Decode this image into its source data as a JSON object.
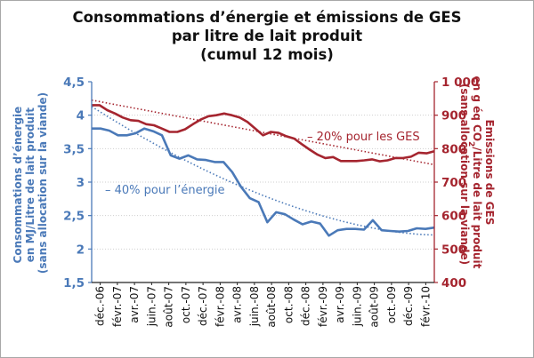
{
  "title_lines": [
    "Consommations d’énergie et émissions de GES",
    "par litre de lait produit",
    "(cumul 12 mois)"
  ],
  "colors": {
    "energy": "#4a79b8",
    "ges": "#a5252f",
    "axis": "#222222",
    "grid": "#cfcfcf"
  },
  "chart_data": {
    "type": "line",
    "title": "Consommations d’énergie et émissions de GES par litre de lait produit (cumul 12 mois)",
    "x_tick_labels": [
      "déc.-06",
      "févr.-07",
      "avr.-07",
      "juin.-07",
      "août-07",
      "oct.-07",
      "déc.-07",
      "févr.-08",
      "avr.-08",
      "juin.-08",
      "août-08",
      "oct.-08",
      "déc.-08",
      "févr.-09",
      "avr.-09",
      "juin.-09",
      "août-09",
      "oct.-09",
      "déc.-09",
      "févr.-10"
    ],
    "y_left": {
      "label_lines": [
        "Consommations d’énergie",
        "en MJ/Litre de lait produit",
        "(sans allocation sur la viande)"
      ],
      "ticks": [
        "1,5",
        "2",
        "2,5",
        "3",
        "3,5",
        "4",
        "4,5"
      ],
      "ylim": [
        1.5,
        4.5
      ]
    },
    "y_right": {
      "label_line1": "Emissions de GES",
      "label_line2_pre": "en g éq CO",
      "label_line2_sub": "2",
      "label_line2_post": "/Litre de lait produit",
      "label_line3": "(sans allocation sur la viande)",
      "ticks": [
        "400",
        "500",
        "600",
        "700",
        "800",
        "900",
        "1 000"
      ],
      "ylim": [
        400,
        1000
      ]
    },
    "series": [
      {
        "axis": "left",
        "values": [
          3.8,
          3.8,
          3.77,
          3.7,
          3.7,
          3.73,
          3.8,
          3.76,
          3.7,
          3.4,
          3.35,
          3.4,
          3.34,
          3.33,
          3.3,
          3.3,
          3.15,
          2.93,
          2.76,
          2.7,
          2.4,
          2.55,
          2.52,
          2.44,
          2.37,
          2.41,
          2.38,
          2.2,
          2.28,
          2.3,
          2.3,
          2.29,
          2.43,
          2.28,
          2.27,
          2.26,
          2.27,
          2.31,
          2.3,
          2.32
        ]
      },
      {
        "axis": "right",
        "values": [
          930,
          930,
          915,
          905,
          893,
          885,
          883,
          873,
          870,
          860,
          850,
          850,
          858,
          873,
          887,
          897,
          900,
          905,
          900,
          893,
          880,
          860,
          840,
          850,
          847,
          837,
          830,
          813,
          797,
          782,
          772,
          775,
          763,
          763,
          763,
          765,
          768,
          762,
          765,
          772,
          772,
          776,
          788,
          786,
          792
        ]
      }
    ],
    "trendlines": [
      {
        "axis": "left",
        "label": "– 40% pour l’énergie",
        "start": 4.13,
        "end": 2.21
      },
      {
        "axis": "right",
        "label": "– 20% pour les GES",
        "start": 945,
        "end": 752
      }
    ]
  }
}
